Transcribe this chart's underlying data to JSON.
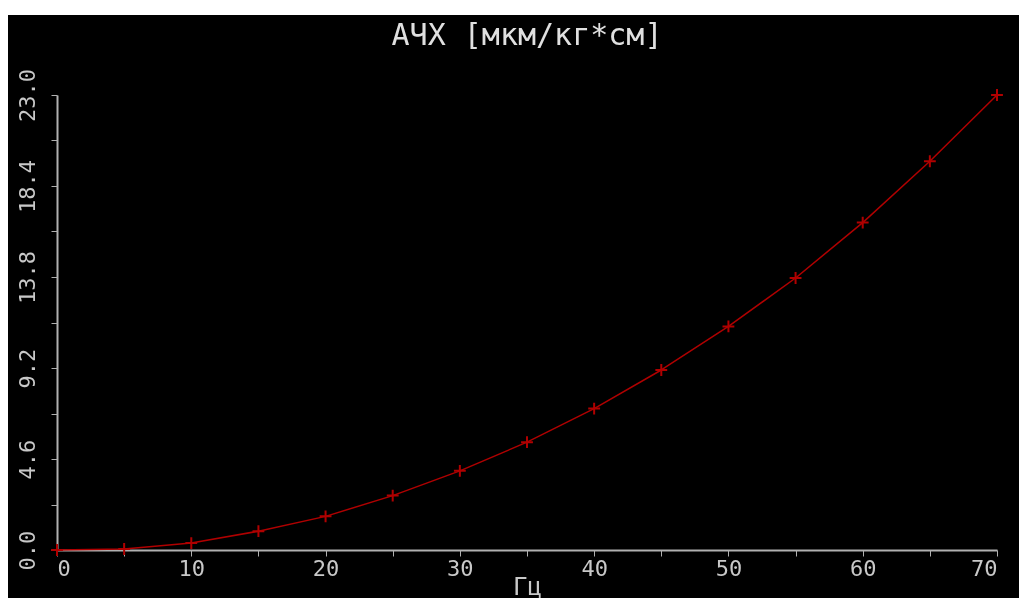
{
  "chart_data": {
    "type": "line",
    "title": "АЧХ  [мкм/кг*см]",
    "xlabel": "Гц",
    "x": [
      0,
      5,
      10,
      15,
      20,
      25,
      30,
      35,
      40,
      45,
      50,
      55,
      60,
      65,
      70
    ],
    "series": [
      {
        "color": "#b00000",
        "values": [
          0,
          0.05,
          0.35,
          0.95,
          1.7,
          2.75,
          4.0,
          5.45,
          7.15,
          9.1,
          11.3,
          13.75,
          16.55,
          19.65,
          23.0
        ]
      }
    ],
    "xlim": [
      0,
      70
    ],
    "xticks": [
      0,
      {
        "value": 5,
        "label": null
      },
      10,
      {
        "value": 15,
        "label": null
      },
      20,
      {
        "value": 25,
        "label": null
      },
      30,
      {
        "value": 35,
        "label": null
      },
      40,
      {
        "value": 45,
        "label": null
      },
      50,
      {
        "value": 55,
        "label": null
      },
      60,
      {
        "value": 65,
        "label": null
      },
      70
    ],
    "ylim": [
      0,
      23
    ],
    "yticks": [
      {
        "value": 0,
        "label": "0.0"
      },
      {
        "value": 2.3,
        "label": null
      },
      4.6,
      {
        "value": 6.9,
        "label": null
      },
      9.2,
      {
        "value": 11.5,
        "label": null
      },
      13.8,
      {
        "value": 16.1,
        "label": null
      },
      18.4,
      {
        "value": 20.7,
        "label": null
      },
      {
        "value": 23,
        "label": "23.0"
      }
    ],
    "grid": false,
    "legend": false,
    "marker": "cross",
    "line_style": "solid"
  }
}
